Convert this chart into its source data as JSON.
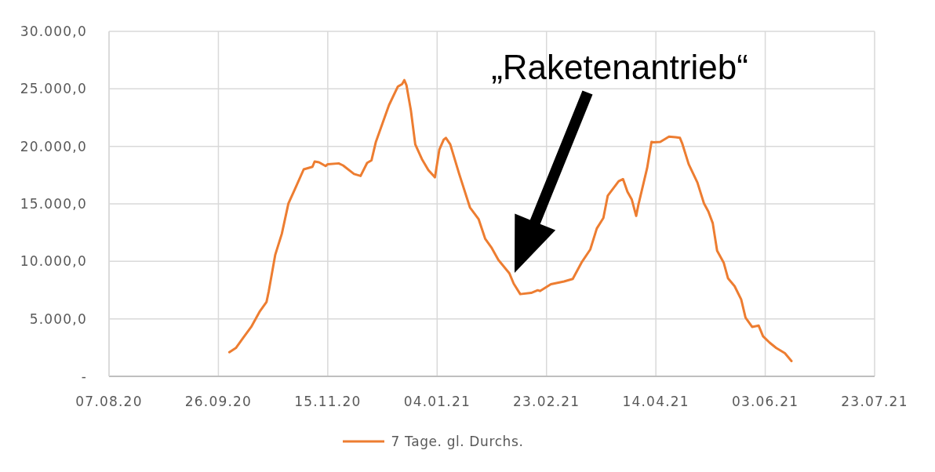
{
  "chart_data": {
    "type": "line",
    "annotations": [
      "„Raketenantrieb“"
    ],
    "x": [
      "2020-10-01",
      "2020-10-04",
      "2020-10-07",
      "2020-10-11",
      "2020-10-15",
      "2020-10-18",
      "2020-10-19",
      "2020-10-22",
      "2020-10-25",
      "2020-10-28",
      "2020-10-31",
      "2020-11-04",
      "2020-11-08",
      "2020-11-09",
      "2020-11-11",
      "2020-11-14",
      "2020-11-15",
      "2020-11-20",
      "2020-11-22",
      "2020-11-27",
      "2020-11-30",
      "2020-12-03",
      "2020-12-05",
      "2020-12-07",
      "2020-12-10",
      "2020-12-13",
      "2020-12-17",
      "2020-12-19",
      "2020-12-20",
      "2020-12-21",
      "2020-12-23",
      "2020-12-25",
      "2020-12-28",
      "2020-12-31",
      "2021-01-03",
      "2021-01-05",
      "2021-01-07",
      "2021-01-08",
      "2021-01-10",
      "2021-01-14",
      "2021-01-19",
      "2021-01-23",
      "2021-01-26",
      "2021-01-29",
      "2021-02-01",
      "2021-02-06",
      "2021-02-08",
      "2021-02-11",
      "2021-02-16",
      "2021-02-19",
      "2021-02-20",
      "2021-02-25",
      "2021-03-03",
      "2021-03-07",
      "2021-03-11",
      "2021-03-15",
      "2021-03-18",
      "2021-03-21",
      "2021-03-23",
      "2021-03-28",
      "2021-03-30",
      "2021-04-01",
      "2021-04-03",
      "2021-04-05",
      "2021-04-06",
      "2021-04-10",
      "2021-04-12",
      "2021-04-13",
      "2021-04-16",
      "2021-04-20",
      "2021-04-23",
      "2021-04-25",
      "2021-04-26",
      "2021-04-29",
      "2021-05-03",
      "2021-05-06",
      "2021-05-08",
      "2021-05-10",
      "2021-05-12",
      "2021-05-15",
      "2021-05-17",
      "2021-05-20",
      "2021-05-23",
      "2021-05-25",
      "2021-05-28",
      "2021-05-31",
      "2021-06-02",
      "2021-06-05",
      "2021-06-08",
      "2021-06-12",
      "2021-06-15"
    ],
    "series": [
      {
        "name": "7 Tage. gl. Durchs.",
        "color": "#ed7d31",
        "values": [
          2100,
          2470,
          3270,
          4300,
          5670,
          6470,
          7380,
          10580,
          12400,
          15030,
          16280,
          18000,
          18220,
          18680,
          18610,
          18290,
          18450,
          18520,
          18340,
          17600,
          17430,
          18560,
          18790,
          20390,
          21990,
          23590,
          25190,
          25420,
          25760,
          25300,
          23130,
          20170,
          18910,
          17930,
          17310,
          19710,
          20580,
          20740,
          20170,
          17650,
          14690,
          13660,
          11950,
          11150,
          10120,
          8970,
          8060,
          7150,
          7260,
          7490,
          7420,
          8010,
          8250,
          8470,
          9890,
          11030,
          12860,
          13770,
          15710,
          16970,
          17150,
          16050,
          15370,
          13950,
          14910,
          18110,
          20390,
          20350,
          20390,
          20850,
          20800,
          20740,
          20280,
          18450,
          16850,
          15030,
          14340,
          13320,
          10920,
          9890,
          8520,
          7840,
          6690,
          5100,
          4300,
          4410,
          3490,
          2930,
          2470,
          2010,
          1330
        ]
      }
    ],
    "xlim": [
      "2020-08-07",
      "2021-07-23"
    ],
    "xticks": [
      {
        "value": "2020-08-07",
        "label": "07.08.20"
      },
      {
        "value": "2020-09-26",
        "label": "26.09.20"
      },
      {
        "value": "2020-11-15",
        "label": "15.11.20"
      },
      {
        "value": "2021-01-04",
        "label": "04.01.21"
      },
      {
        "value": "2021-02-23",
        "label": "23.02.21"
      },
      {
        "value": "2021-04-14",
        "label": "14.04.21"
      },
      {
        "value": "2021-06-03",
        "label": "03.06.21"
      },
      {
        "value": "2021-07-23",
        "label": "23.07.21"
      }
    ],
    "ylim": [
      0,
      30000
    ],
    "yticks": [
      {
        "value": 0,
        "label": "-"
      },
      {
        "value": 5000,
        "label": "5.000,0"
      },
      {
        "value": 10000,
        "label": "10.000,0"
      },
      {
        "value": 15000,
        "label": "15.000,0"
      },
      {
        "value": 20000,
        "label": "20.000,0"
      },
      {
        "value": 25000,
        "label": "25.000,0"
      },
      {
        "value": 30000,
        "label": "30.000,0"
      }
    ],
    "grid": true,
    "legend": "bottom"
  }
}
